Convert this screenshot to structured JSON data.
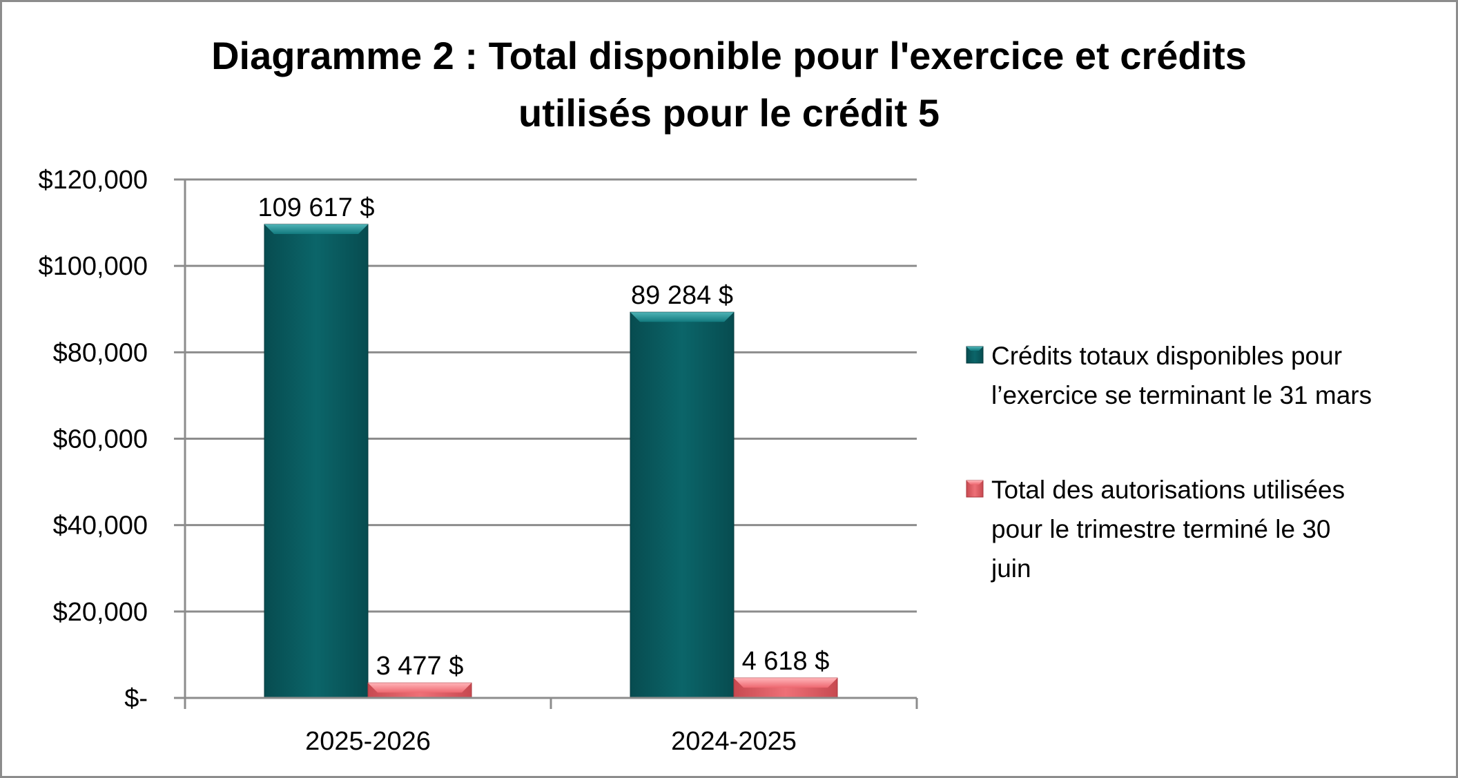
{
  "chart_data": {
    "type": "bar",
    "title_lines": [
      "Diagramme 2 : Total disponible pour l'exercice et crédits",
      "utilisés pour le crédit 5"
    ],
    "categories": [
      "2025-2026",
      "2024-2025"
    ],
    "series": [
      {
        "name_lines": [
          "Crédits totaux disponibles pour",
          "l’exercice se terminant le 31 mars"
        ],
        "values": [
          109617,
          89284
        ],
        "value_labels": [
          "109 617 $",
          "89 284 $"
        ],
        "color": "#0b6569"
      },
      {
        "name_lines": [
          "Total des autorisations utilisées",
          "pour le trimestre terminé le 30",
          "juin"
        ],
        "values": [
          3477,
          4618
        ],
        "value_labels": [
          "3 477 $",
          "4 618 $"
        ],
        "color": "#e8636a"
      }
    ],
    "y_ticks": [
      0,
      20000,
      40000,
      60000,
      80000,
      100000,
      120000
    ],
    "y_tick_labels": [
      "$-",
      "$20,000",
      "$40,000",
      "$60,000",
      "$80,000",
      "$100,000",
      "$120,000"
    ],
    "ylim": [
      0,
      120000
    ],
    "grid": true,
    "legend_position": "right"
  }
}
